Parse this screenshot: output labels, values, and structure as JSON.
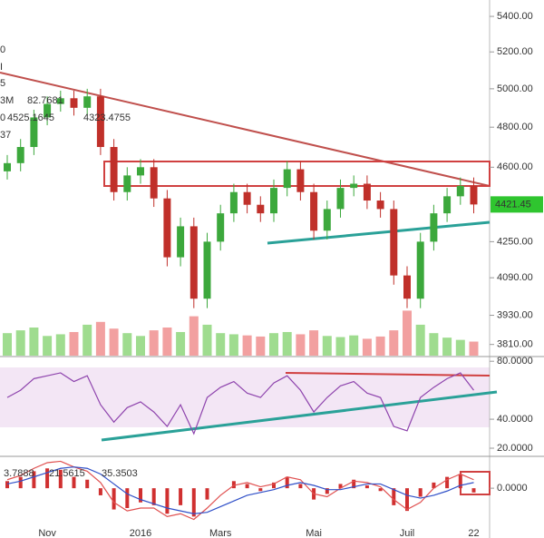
{
  "chart_data": [
    {
      "type": "candlestick",
      "log": true,
      "categories": [
        null,
        null,
        null,
        "Nov",
        null,
        null,
        null,
        null,
        null,
        null,
        "2016",
        null,
        null,
        null,
        null,
        null,
        "Mars",
        null,
        null,
        null,
        null,
        null,
        null,
        "Mai",
        null,
        null,
        null,
        null,
        null,
        null,
        "Juil",
        null,
        null,
        null,
        null,
        "22"
      ],
      "open": [
        4580,
        4620,
        4700,
        4850,
        4920,
        4950,
        4900,
        4960,
        4700,
        4480,
        4560,
        4600,
        4450,
        4180,
        4320,
        4000,
        4250,
        4380,
        4480,
        4420,
        4380,
        4500,
        4590,
        4480,
        4300,
        4400,
        4500,
        4520,
        4440,
        4400,
        4100,
        4000,
        4250,
        4380,
        4460,
        4510
      ],
      "high": [
        4660,
        4740,
        4890,
        4960,
        4990,
        4990,
        5000,
        5000,
        4740,
        4600,
        4640,
        4640,
        4490,
        4360,
        4360,
        4290,
        4420,
        4520,
        4520,
        4460,
        4540,
        4630,
        4630,
        4520,
        4440,
        4540,
        4560,
        4560,
        4480,
        4440,
        4140,
        4290,
        4420,
        4500,
        4550,
        4550
      ],
      "low": [
        4540,
        4580,
        4660,
        4810,
        4880,
        4860,
        4860,
        4660,
        4440,
        4440,
        4520,
        4410,
        4140,
        4140,
        3960,
        3960,
        4210,
        4340,
        4380,
        4340,
        4340,
        4460,
        4440,
        4260,
        4260,
        4360,
        4460,
        4400,
        4360,
        4060,
        3960,
        3960,
        4210,
        4340,
        4420,
        4380
      ],
      "close": [
        4620,
        4700,
        4850,
        4920,
        4950,
        4900,
        4960,
        4700,
        4480,
        4560,
        4600,
        4450,
        4180,
        4320,
        4000,
        4250,
        4380,
        4480,
        4420,
        4380,
        4500,
        4590,
        4480,
        4300,
        4400,
        4500,
        4520,
        4440,
        4400,
        4100,
        4000,
        4250,
        4380,
        4460,
        4510,
        4421.45
      ],
      "up_color": "#3ca83c",
      "down_color": "#c0302a",
      "volume": [
        40,
        45,
        50,
        35,
        38,
        42,
        55,
        60,
        48,
        40,
        35,
        45,
        50,
        42,
        70,
        55,
        40,
        38,
        36,
        34,
        40,
        42,
        38,
        45,
        35,
        33,
        36,
        30,
        34,
        45,
        80,
        55,
        40,
        32,
        28,
        25
      ],
      "volume_lim": [
        0,
        100
      ],
      "ylim": [
        3765,
        5495
      ],
      "yticks": [
        {
          "value": 5400,
          "label": "5400.00"
        },
        {
          "value": 5200,
          "label": "5200.00"
        },
        {
          "value": 5000,
          "label": "5000.00"
        },
        {
          "value": 4800,
          "label": "4800.00"
        },
        {
          "value": 4600,
          "label": "4600.00"
        },
        {
          "value": 4250,
          "label": "4250.00"
        },
        {
          "value": 4090,
          "label": "4090.00"
        },
        {
          "value": 3930,
          "label": "3930.00"
        },
        {
          "value": 3810,
          "label": "3810.00"
        }
      ],
      "last_price": 4421.45,
      "legend_texts": [
        {
          "text": "0",
          "color": "#e69a00"
        },
        {
          "text": "I",
          "color": "#c2185b"
        },
        {
          "text": "5",
          "color": "#c2185b"
        },
        {
          "text": "3M",
          "color": "#2e9e2e"
        },
        {
          "text": "82.7681",
          "color": "#2233aa"
        },
        {
          "text": "0",
          "color": "#c62828"
        },
        {
          "text": "4525.1645",
          "color": "#2233aa"
        },
        {
          "text": "4323.4755",
          "color": "#2233aa"
        },
        {
          "text": "37",
          "color": "#2233aa"
        }
      ]
    },
    {
      "type": "line",
      "color": "#8e44ad",
      "values": [
        55,
        60,
        68,
        70,
        72,
        66,
        70,
        50,
        38,
        48,
        52,
        45,
        35,
        50,
        30,
        55,
        62,
        66,
        58,
        55,
        65,
        70,
        60,
        45,
        55,
        63,
        66,
        58,
        55,
        35,
        32,
        55,
        62,
        68,
        72,
        60
      ],
      "ylim": [
        15,
        82
      ],
      "yticks": [
        {
          "value": 80,
          "label": "80.0000"
        },
        {
          "value": 40,
          "label": "40.0000"
        },
        {
          "value": 20,
          "label": "20.0000"
        }
      ]
    },
    {
      "type": "bar",
      "series": [
        {
          "type": "bar",
          "color": "#d03030",
          "values": [
            5,
            8,
            12,
            14,
            13,
            8,
            6,
            -5,
            -15,
            -14,
            -10,
            -12,
            -18,
            -12,
            -20,
            -8,
            0,
            5,
            3,
            -2,
            4,
            8,
            3,
            -8,
            -4,
            3,
            6,
            2,
            -2,
            -12,
            -16,
            -6,
            4,
            8,
            10,
            -3
          ]
        },
        {
          "type": "line",
          "color": "#e05050",
          "values": [
            6,
            9,
            14,
            18,
            19,
            15,
            12,
            4,
            -10,
            -16,
            -14,
            -14,
            -20,
            -18,
            -22,
            -14,
            -5,
            2,
            4,
            1,
            3,
            8,
            6,
            -4,
            -6,
            0,
            5,
            4,
            1,
            -8,
            -15,
            -10,
            0,
            6,
            10,
            6
          ]
        },
        {
          "type": "line",
          "color": "#3050c8",
          "values": [
            3,
            5,
            8,
            11,
            14,
            15,
            14,
            10,
            3,
            -4,
            -8,
            -11,
            -14,
            -16,
            -18,
            -17,
            -13,
            -9,
            -5,
            -3,
            -1,
            2,
            4,
            2,
            -1,
            -1,
            1,
            3,
            3,
            -1,
            -5,
            -7,
            -5,
            -2,
            2,
            4
          ]
        }
      ],
      "ylim": [
        -30,
        18
      ],
      "yticks": [
        {
          "value": 0,
          "label": "0.0000"
        }
      ],
      "legend_texts": [
        {
          "text": "3.7888",
          "color": "#c62828"
        },
        {
          "text": "21.5615",
          "color": "#2233aa"
        },
        {
          "text": "35.3503",
          "color": "#c62828"
        }
      ]
    }
  ]
}
